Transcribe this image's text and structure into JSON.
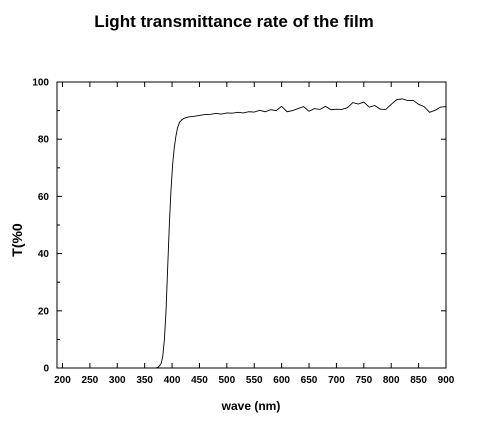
{
  "chart_data": {
    "type": "line",
    "title": "Light transmittance rate of the film",
    "xlabel": "wave (nm)",
    "ylabel": "T(%0",
    "xlim": [
      190,
      900
    ],
    "ylim": [
      0,
      100
    ],
    "x_ticks": [
      200,
      250,
      300,
      350,
      400,
      450,
      500,
      550,
      600,
      650,
      700,
      750,
      800,
      850,
      900
    ],
    "y_ticks": [
      0,
      20,
      40,
      60,
      80,
      100
    ],
    "grid": false,
    "legend": "none",
    "series": [
      {
        "color": "#000000",
        "x": [
          190,
          300,
          370,
          375,
          380,
          383,
          386,
          389,
          392,
          395,
          398,
          401,
          404,
          407,
          410,
          414,
          418,
          422,
          430,
          440,
          450,
          460,
          470,
          480,
          490,
          500,
          510,
          520,
          530,
          540,
          550,
          560,
          570,
          580,
          590,
          600,
          610,
          620,
          630,
          640,
          650,
          660,
          670,
          680,
          690,
          700,
          710,
          720,
          730,
          740,
          750,
          760,
          770,
          780,
          790,
          800,
          810,
          820,
          830,
          840,
          850,
          860,
          870,
          880,
          890,
          900
        ],
        "values": [
          0,
          0,
          0,
          0.3,
          1.5,
          4,
          10,
          20,
          35,
          50,
          62,
          71,
          77,
          81,
          84,
          86,
          86.8,
          87.3,
          87.8,
          88,
          88.3,
          88.6,
          88.7,
          89,
          88.8,
          89.2,
          89.1,
          89.4,
          89.2,
          89.6,
          89.5,
          90.1,
          89.6,
          90.3,
          90,
          91.5,
          89.6,
          90,
          90.7,
          91.4,
          89.8,
          90.7,
          90.4,
          91.5,
          90.3,
          90.5,
          90.4,
          91,
          92.8,
          92.3,
          93,
          91.2,
          91.8,
          90.5,
          90.4,
          92.2,
          93.8,
          94.1,
          93.5,
          93.6,
          92.2,
          91.4,
          89.4,
          90.1,
          91.2,
          91.4
        ]
      }
    ]
  }
}
